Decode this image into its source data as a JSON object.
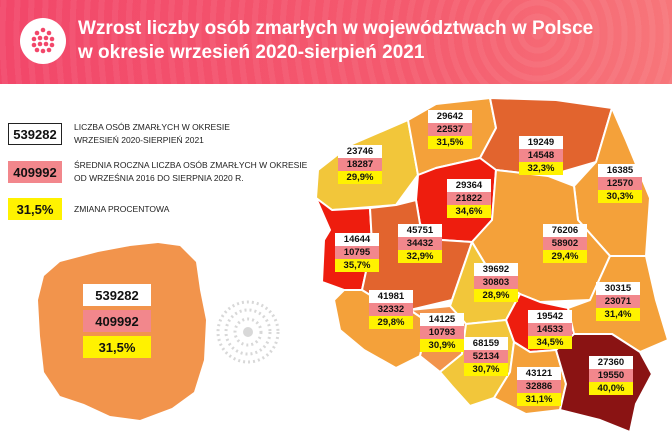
{
  "title": {
    "line1": "Wzrost liczby osób zmarłych w województwach w Polsce",
    "line2": "w okresie wrzesień 2020-sierpień 2021"
  },
  "legend": {
    "deaths_value": "539282",
    "deaths_label_1": "LICZBA OSÓB ZMARŁYCH W OKRESIE",
    "deaths_label_2": "WRZESIEŃ 2020-SIERPIEŃ 2021",
    "avg_value": "409992",
    "avg_label_1": "ŚREDNIA ROCZNA LICZBA OSÓB ZMARŁYCH W OKRESIE",
    "avg_label_2": "OD WRZEŚNIA 2016 DO SIERPNIA 2020 R.",
    "change_value": "31,5%",
    "change_label": "ZMIANA PROCENTOWA"
  },
  "poland_total": {
    "deaths": "539282",
    "average": "409992",
    "change": "31,5%"
  },
  "colors": {
    "header": "#f2476a",
    "white_box": "#ffffff",
    "pink_box": "#f2878c",
    "yellow_box": "#fff200",
    "scale_low": "#f2c63a",
    "scale_mid": "#f4a13a",
    "scale_high": "#e2642e",
    "scale_very_high": "#e44a2a",
    "scale_highest": "#ee1d0e",
    "scale_max": "#8a1313"
  },
  "regions": [
    {
      "id": "zachodniopomorskie",
      "deaths": "23746",
      "average": "18287",
      "change": "29,9%"
    },
    {
      "id": "pomorskie",
      "deaths": "29642",
      "average": "22537",
      "change": "31,5%"
    },
    {
      "id": "warminsko-mazurskie",
      "deaths": "19249",
      "average": "14548",
      "change": "32,3%"
    },
    {
      "id": "podlaskie",
      "deaths": "16385",
      "average": "12570",
      "change": "30,3%"
    },
    {
      "id": "kujawsko-pomorskie",
      "deaths": "29364",
      "average": "21822",
      "change": "34,6%"
    },
    {
      "id": "lubuskie",
      "deaths": "14644",
      "average": "10795",
      "change": "35,7%"
    },
    {
      "id": "wielkopolskie",
      "deaths": "45751",
      "average": "34432",
      "change": "32,9%"
    },
    {
      "id": "mazowieckie",
      "deaths": "76206",
      "average": "58902",
      "change": "29,4%"
    },
    {
      "id": "lodzkie",
      "deaths": "39692",
      "average": "30803",
      "change": "28,9%"
    },
    {
      "id": "dolnoslaskie",
      "deaths": "41981",
      "average": "32332",
      "change": "29,8%"
    },
    {
      "id": "opolskie",
      "deaths": "14125",
      "average": "10793",
      "change": "30,9%"
    },
    {
      "id": "swietokrzyskie",
      "deaths": "19542",
      "average": "14533",
      "change": "34,5%"
    },
    {
      "id": "lubelskie",
      "deaths": "30315",
      "average": "23071",
      "change": "31,4%"
    },
    {
      "id": "slaskie",
      "deaths": "68159",
      "average": "52134",
      "change": "30,7%"
    },
    {
      "id": "malopolskie",
      "deaths": "43121",
      "average": "32886",
      "change": "31,1%"
    },
    {
      "id": "podkarpackie",
      "deaths": "27360",
      "average": "19550",
      "change": "40,0%"
    }
  ]
}
